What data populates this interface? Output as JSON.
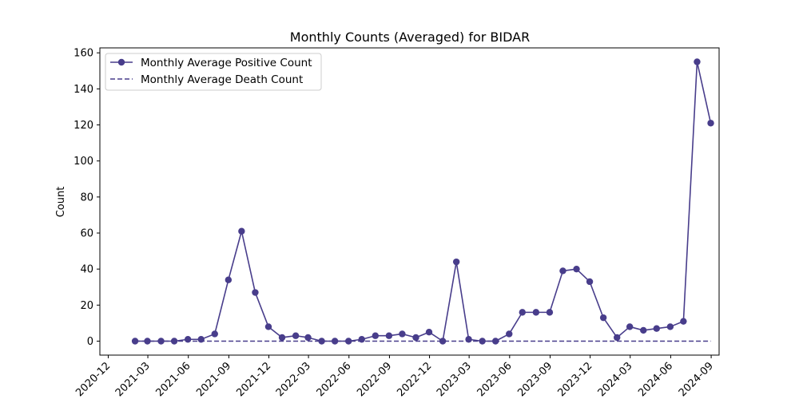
{
  "chart_data": {
    "type": "line",
    "title": "Monthly Counts (Averaged) for BIDAR",
    "xlabel": "",
    "ylabel": "Count",
    "xlim": [
      "2020-11-12",
      "2024-09-19"
    ],
    "ylim": [
      -7.75,
      162.75
    ],
    "grid": false,
    "legend": "upper-left",
    "x_ticks": [
      "2020-12",
      "2021-03",
      "2021-06",
      "2021-09",
      "2021-12",
      "2022-03",
      "2022-06",
      "2022-09",
      "2022-12",
      "2023-03",
      "2023-06",
      "2023-09",
      "2023-12",
      "2024-03",
      "2024-06",
      "2024-09"
    ],
    "y_ticks": [
      0,
      20,
      40,
      60,
      80,
      100,
      120,
      140,
      160
    ],
    "x": [
      "2021-01-31",
      "2021-02-28",
      "2021-03-31",
      "2021-04-30",
      "2021-05-31",
      "2021-06-30",
      "2021-07-31",
      "2021-08-31",
      "2021-09-30",
      "2021-10-31",
      "2021-11-30",
      "2021-12-31",
      "2022-01-31",
      "2022-02-28",
      "2022-03-31",
      "2022-04-30",
      "2022-05-31",
      "2022-06-30",
      "2022-07-31",
      "2022-08-31",
      "2022-09-30",
      "2022-10-31",
      "2022-11-30",
      "2022-12-31",
      "2023-01-31",
      "2023-02-28",
      "2023-03-31",
      "2023-04-30",
      "2023-05-31",
      "2023-06-30",
      "2023-07-31",
      "2023-08-31",
      "2023-09-30",
      "2023-10-31",
      "2023-11-30",
      "2023-12-31",
      "2024-01-31",
      "2024-02-29",
      "2024-03-31",
      "2024-04-30",
      "2024-05-31",
      "2024-06-30",
      "2024-07-31",
      "2024-08-31"
    ],
    "series": [
      {
        "name": "Monthly Average Positive Count",
        "color": "#483d8b",
        "style": "solid",
        "marker": "circle",
        "values": [
          0,
          0,
          0,
          0,
          1,
          1,
          4,
          34,
          61,
          27,
          8,
          2,
          3,
          2,
          0,
          0,
          0,
          1,
          3,
          3,
          4,
          2,
          5,
          0,
          44,
          1,
          0,
          0,
          4,
          16,
          16,
          16,
          39,
          40,
          33,
          13,
          2,
          8,
          6,
          7,
          8,
          11,
          155,
          121
        ]
      },
      {
        "name": "Monthly Average Death Count",
        "color": "#483d8b",
        "style": "dashed",
        "marker": "none",
        "values": [
          0,
          0,
          0,
          0,
          0,
          0,
          0,
          0,
          0,
          0,
          0,
          0,
          0,
          0,
          0,
          0,
          0,
          0,
          0,
          0,
          0,
          0,
          0,
          0,
          0,
          0,
          0,
          0,
          0,
          0,
          0,
          0,
          0,
          0,
          0,
          0,
          0,
          0,
          0,
          0,
          0,
          0,
          0,
          0
        ]
      }
    ]
  }
}
